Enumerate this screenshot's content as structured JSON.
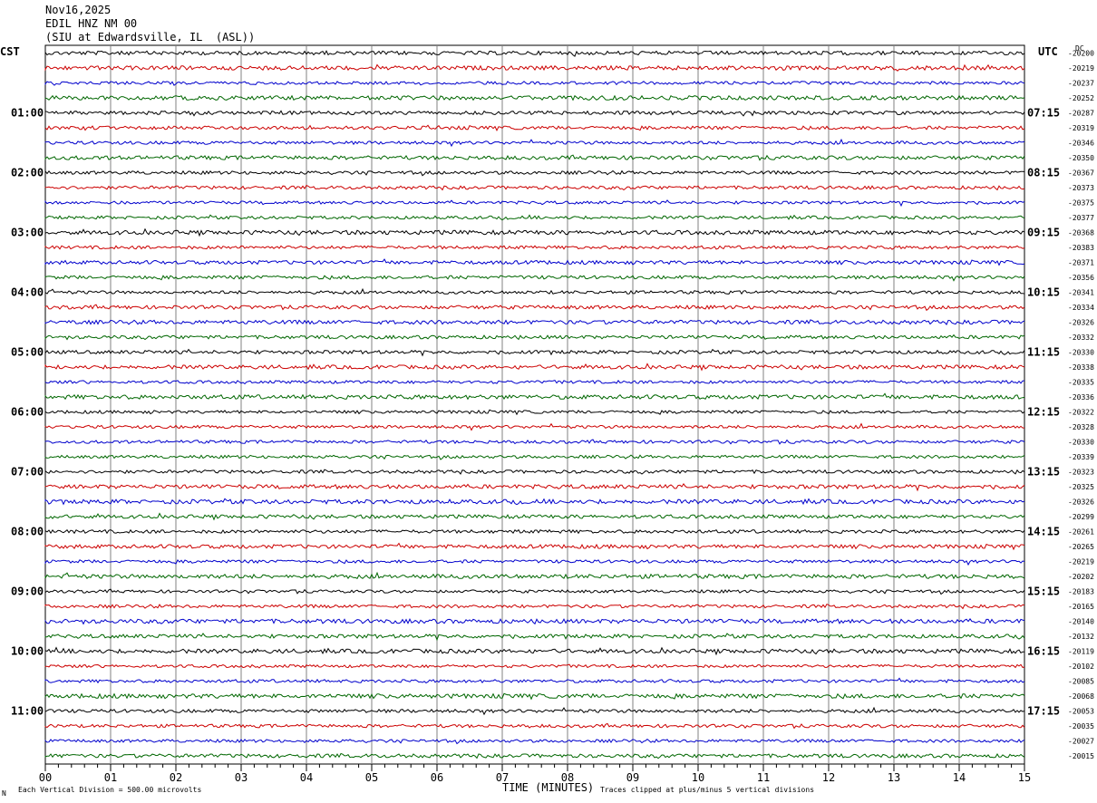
{
  "header": {
    "date": "Nov16,2025",
    "station": "EDIL HNZ NM 00",
    "location": "(SIU at Edwardsville, IL  (ASL))"
  },
  "left_tz": "CST",
  "right_tz": "UTC",
  "dc_label": "DC",
  "footer": {
    "left_mark": "N",
    "scale_note": "Each Vertical Division =  500.00 microvolts",
    "xlabel": "TIME (MINUTES)",
    "clip_note": "Traces clipped at plus/minus 5 vertical divisions"
  },
  "colors": {
    "trace_cycle": [
      "#000000",
      "#cc0000",
      "#0000cc",
      "#006600"
    ],
    "grid": "#808080"
  },
  "chart_data": {
    "type": "line",
    "xlabel": "TIME (MINUTES)",
    "xlim": [
      0,
      15
    ],
    "x_ticks": [
      "00",
      "01",
      "02",
      "03",
      "04",
      "05",
      "06",
      "07",
      "08",
      "09",
      "10",
      "11",
      "12",
      "13",
      "14",
      "15"
    ],
    "left_hour_labels": [
      {
        "row": 4,
        "label": "01:00"
      },
      {
        "row": 8,
        "label": "02:00"
      },
      {
        "row": 12,
        "label": "03:00"
      },
      {
        "row": 16,
        "label": "04:00"
      },
      {
        "row": 20,
        "label": "05:00"
      },
      {
        "row": 24,
        "label": "06:00"
      },
      {
        "row": 28,
        "label": "07:00"
      },
      {
        "row": 32,
        "label": "08:00"
      },
      {
        "row": 36,
        "label": "09:00"
      },
      {
        "row": 40,
        "label": "10:00"
      },
      {
        "row": 44,
        "label": "11:00"
      }
    ],
    "right_hour_labels": [
      {
        "row": 4,
        "label": "07:15"
      },
      {
        "row": 8,
        "label": "08:15"
      },
      {
        "row": 12,
        "label": "09:15"
      },
      {
        "row": 16,
        "label": "10:15"
      },
      {
        "row": 20,
        "label": "11:15"
      },
      {
        "row": 24,
        "label": "12:15"
      },
      {
        "row": 28,
        "label": "13:15"
      },
      {
        "row": 32,
        "label": "14:15"
      },
      {
        "row": 36,
        "label": "15:15"
      },
      {
        "row": 40,
        "label": "16:15"
      },
      {
        "row": 44,
        "label": "17:15"
      }
    ],
    "dc_offsets": [
      "-20200",
      "-20219",
      "-20237",
      "-20252",
      "-20287",
      "-20319",
      "-20346",
      "-20350",
      "-20367",
      "-20373",
      "-20375",
      "-20377",
      "-20368",
      "-20383",
      "-20371",
      "-20356",
      "-20341",
      "-20334",
      "-20326",
      "-20332",
      "-20330",
      "-20338",
      "-20335",
      "-20336",
      "-20322",
      "-20328",
      "-20330",
      "-20339",
      "-20323",
      "-20325",
      "-20326",
      "-20299",
      "-20261",
      "-20265",
      "-20219",
      "-20202",
      "-20183",
      "-20165",
      "-20140",
      "-20132",
      "-20119",
      "-20102",
      "-20085",
      "-20068",
      "-20053",
      "-20035",
      "-20027",
      "-20015"
    ],
    "series_count": 48
  }
}
